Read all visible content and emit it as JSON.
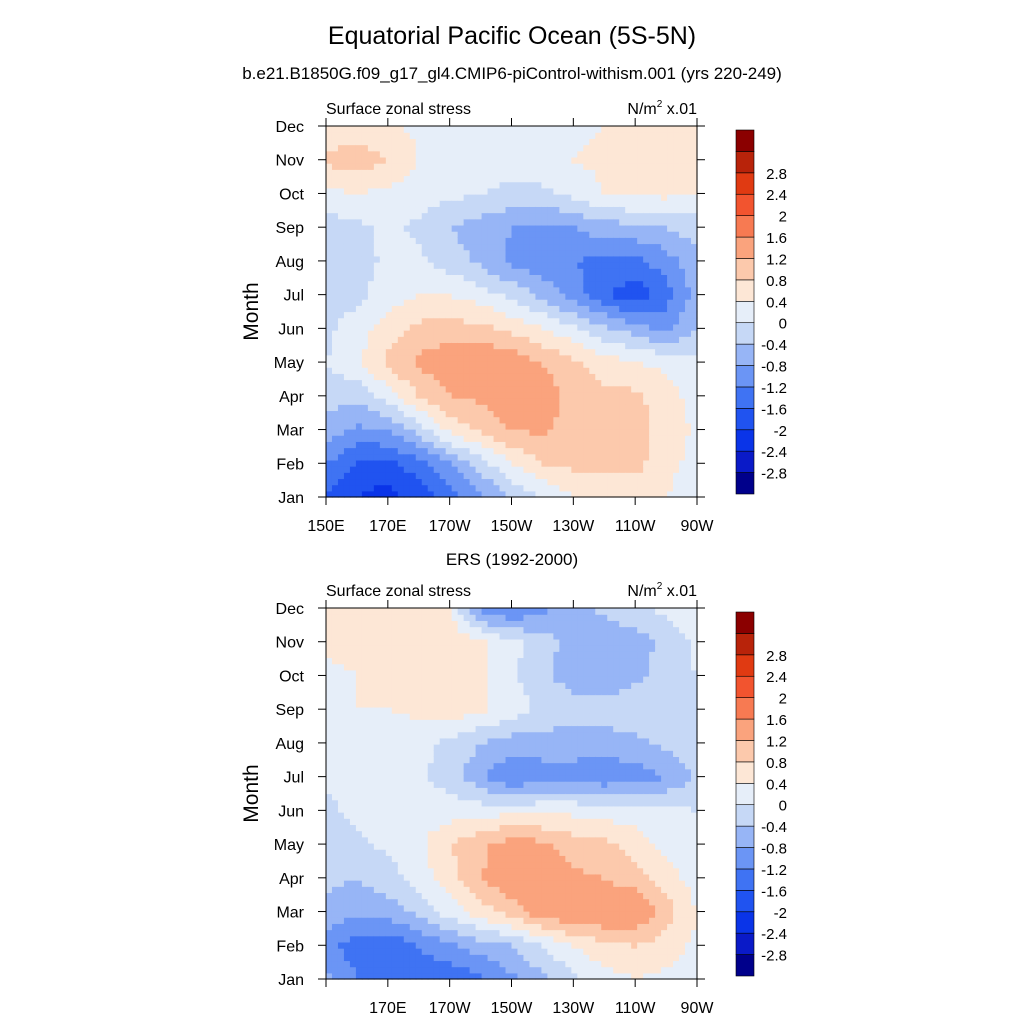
{
  "title": "Equatorial Pacific Ocean (5S-5N)",
  "chart_data": [
    {
      "type": "heatmap",
      "title": "b.e21.B1850G.f09_g17_gl4.CMIP6-piControl-withism.001 (yrs 220-249)",
      "left_label": "Surface zonal stress",
      "units": "x.01",
      "units_base": "N/m",
      "units_exp": "2",
      "ylabel": "Month",
      "x_ticks": [
        "150E",
        "170E",
        "170W",
        "150W",
        "130W",
        "110W",
        "90W"
      ],
      "y_ticks": [
        "Jan",
        "Feb",
        "Mar",
        "Apr",
        "May",
        "Jun",
        "Jul",
        "Aug",
        "Sep",
        "Oct",
        "Nov",
        "Dec"
      ],
      "xlim": [
        150,
        270
      ],
      "ylim": [
        1,
        12
      ],
      "colorbar": {
        "levels": [
          "-2.8",
          "-2.4",
          "-2",
          "-1.6",
          "-1.2",
          "-0.8",
          "-0.4",
          "0",
          "0.4",
          "0.8",
          "1.2",
          "1.6",
          "2",
          "2.4",
          "2.8"
        ],
        "colors": [
          "#00008b",
          "#0a1ac8",
          "#0a34e8",
          "#2053f0",
          "#3f73f3",
          "#6b95f5",
          "#97b5f6",
          "#c6d8f6",
          "#e6eef9",
          "#fde7d6",
          "#fcc9ac",
          "#faa37d",
          "#f77a52",
          "#f2542f",
          "#e03a12",
          "#b8230a",
          "#8b0000"
        ]
      },
      "x": [
        150,
        160,
        170,
        180,
        190,
        200,
        210,
        220,
        230,
        240,
        250,
        260,
        270
      ],
      "y": [
        1,
        2,
        3,
        4,
        5,
        6,
        7,
        8,
        9,
        10,
        11,
        12
      ],
      "z": [
        [
          -1.6,
          -2.0,
          -2.2,
          -1.8,
          -1.4,
          -0.9,
          -0.4,
          0.0,
          0.4,
          0.6,
          0.6,
          0.4,
          0.0
        ],
        [
          -1.2,
          -1.6,
          -1.7,
          -1.4,
          -0.8,
          -0.2,
          0.4,
          0.8,
          0.9,
          0.9,
          0.9,
          0.6,
          0.2
        ],
        [
          -0.6,
          -0.9,
          -0.8,
          -0.2,
          0.5,
          0.9,
          1.2,
          1.3,
          1.0,
          0.9,
          0.9,
          0.7,
          0.3
        ],
        [
          -0.2,
          -0.3,
          0.2,
          0.8,
          1.2,
          1.3,
          1.5,
          1.5,
          1.0,
          0.9,
          0.9,
          0.6,
          0.2
        ],
        [
          0.0,
          0.3,
          0.9,
          1.3,
          1.5,
          1.6,
          1.5,
          1.2,
          0.9,
          0.6,
          0.4,
          0.3,
          0.1
        ],
        [
          -0.1,
          0.2,
          0.6,
          0.9,
          1.0,
          0.9,
          0.7,
          0.4,
          0.1,
          -0.3,
          -0.6,
          -0.9,
          -0.4
        ],
        [
          -0.2,
          -0.1,
          0.2,
          0.4,
          0.4,
          0.2,
          -0.1,
          -0.5,
          -1.0,
          -1.5,
          -1.9,
          -1.4,
          -0.6
        ],
        [
          -0.3,
          -0.2,
          0.1,
          0.1,
          -0.2,
          -0.5,
          -0.9,
          -1.1,
          -1.2,
          -1.3,
          -1.3,
          -1.0,
          -0.5
        ],
        [
          -0.2,
          -0.1,
          0.1,
          -0.1,
          -0.4,
          -0.6,
          -0.8,
          -0.9,
          -0.8,
          -0.6,
          -0.5,
          -0.4,
          -0.2
        ],
        [
          0.3,
          0.4,
          0.3,
          0.2,
          0.1,
          0.0,
          -0.1,
          -0.1,
          0.1,
          0.4,
          0.5,
          0.5,
          0.4
        ],
        [
          0.9,
          1.0,
          0.8,
          0.4,
          0.3,
          0.2,
          0.2,
          0.3,
          0.4,
          0.5,
          0.6,
          0.6,
          0.5
        ],
        [
          0.5,
          0.6,
          0.5,
          0.3,
          0.2,
          0.2,
          0.3,
          0.3,
          0.3,
          0.4,
          0.5,
          0.5,
          0.4
        ]
      ]
    },
    {
      "type": "heatmap",
      "title": "ERS (1992-2000)",
      "left_label": "Surface zonal stress",
      "units": "x.01",
      "units_base": "N/m",
      "units_exp": "2",
      "ylabel": "Month",
      "x_ticks": [
        "",
        "170E",
        "170W",
        "150W",
        "130W",
        "110W",
        "90W"
      ],
      "y_ticks": [
        "Jan",
        "Feb",
        "Mar",
        "Apr",
        "May",
        "Jun",
        "Jul",
        "Aug",
        "Sep",
        "Oct",
        "Nov",
        "Dec"
      ],
      "xlim": [
        150,
        270
      ],
      "ylim": [
        1,
        12
      ],
      "colorbar": {
        "levels": [
          "-2.8",
          "-2.4",
          "-2",
          "-1.6",
          "-1.2",
          "-0.8",
          "-0.4",
          "0",
          "0.4",
          "0.8",
          "1.2",
          "1.6",
          "2",
          "2.4",
          "2.8"
        ],
        "colors": [
          "#00008b",
          "#0a1ac8",
          "#0a34e8",
          "#2053f0",
          "#3f73f3",
          "#6b95f5",
          "#97b5f6",
          "#c6d8f6",
          "#e6eef9",
          "#fde7d6",
          "#fcc9ac",
          "#faa37d",
          "#f77a52",
          "#f2542f",
          "#e03a12",
          "#b8230a",
          "#8b0000"
        ]
      },
      "x": [
        150,
        160,
        170,
        180,
        190,
        200,
        210,
        220,
        230,
        240,
        250,
        260,
        270
      ],
      "y": [
        1,
        2,
        3,
        4,
        5,
        6,
        7,
        8,
        9,
        10,
        11,
        12
      ],
      "z": [
        [
          -0.7,
          -1.2,
          -1.3,
          -1.4,
          -1.5,
          -1.3,
          -0.9,
          -0.5,
          -0.1,
          0.2,
          0.4,
          0.3,
          0.2
        ],
        [
          -1.1,
          -1.4,
          -1.5,
          -1.2,
          -0.9,
          -0.6,
          -0.4,
          0.0,
          0.4,
          0.7,
          0.8,
          0.6,
          0.3
        ],
        [
          -0.5,
          -0.7,
          -0.6,
          -0.3,
          0.2,
          0.6,
          1.0,
          1.5,
          1.6,
          1.6,
          1.6,
          1.0,
          0.4
        ],
        [
          -0.3,
          -0.4,
          -0.2,
          0.2,
          0.6,
          1.2,
          1.5,
          1.6,
          1.3,
          1.2,
          1.0,
          0.6,
          0.2
        ],
        [
          -0.2,
          -0.1,
          0.1,
          0.3,
          0.8,
          1.1,
          1.4,
          1.3,
          1.0,
          0.9,
          0.6,
          0.3,
          0.1
        ],
        [
          -0.1,
          0.1,
          0.2,
          0.2,
          0.2,
          0.2,
          0.3,
          0.3,
          0.3,
          0.2,
          0.2,
          0.1,
          0.0
        ],
        [
          0.1,
          0.2,
          0.2,
          0.1,
          -0.2,
          -0.7,
          -1.2,
          -1.0,
          -1.0,
          -1.1,
          -1.0,
          -0.8,
          -0.3
        ],
        [
          0.2,
          0.3,
          0.2,
          0.1,
          -0.1,
          -0.4,
          -0.6,
          -0.6,
          -0.6,
          -0.6,
          -0.5,
          -0.3,
          -0.1
        ],
        [
          0.2,
          0.4,
          0.4,
          0.5,
          0.6,
          0.5,
          0.2,
          -0.1,
          -0.2,
          -0.2,
          -0.1,
          0.0,
          0.0
        ],
        [
          0.2,
          0.4,
          0.5,
          0.5,
          0.6,
          0.5,
          0.1,
          -0.3,
          -0.6,
          -0.7,
          -0.5,
          -0.2,
          0.0
        ],
        [
          0.6,
          0.6,
          0.6,
          0.7,
          0.7,
          0.5,
          0.1,
          -0.2,
          -0.6,
          -0.7,
          -0.6,
          -0.3,
          0.1
        ],
        [
          0.5,
          0.5,
          0.6,
          0.5,
          0.4,
          -1.0,
          -1.2,
          -0.9,
          -0.6,
          -0.3,
          -0.1,
          0.1,
          0.3
        ]
      ]
    }
  ]
}
